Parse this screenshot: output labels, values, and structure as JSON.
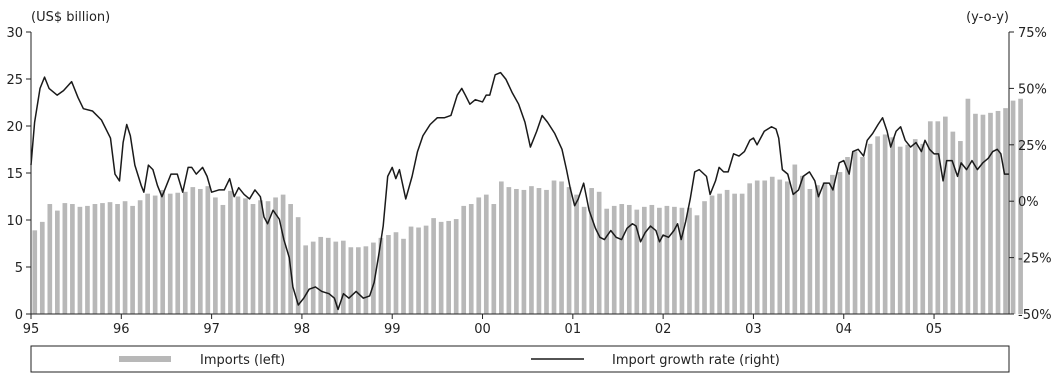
{
  "chart_data": {
    "type": "bar+line",
    "left_axis": {
      "unit_label": "(US$ billion)",
      "range": [
        0,
        30
      ],
      "ticks": [
        "0",
        "5",
        "10",
        "15",
        "20",
        "25",
        "30"
      ]
    },
    "right_axis": {
      "unit_label": "(y-o-y)",
      "range": [
        -50,
        75
      ],
      "ticks": [
        "-50%",
        "-25%",
        "0%",
        "25%",
        "50%",
        "75%"
      ]
    },
    "x_axis": {
      "range": [
        1995.0,
        2005.83
      ],
      "ticks": [
        "95",
        "96",
        "97",
        "98",
        "99",
        "00",
        "01",
        "02",
        "03",
        "04",
        "05"
      ]
    },
    "grid": false,
    "legend_position": "bottom",
    "legend": [
      {
        "label": "Imports (left)",
        "kind": "bar",
        "color": "#b8b8b8"
      },
      {
        "label": "Import growth rate (right)",
        "kind": "line",
        "color": "#1a1a1a"
      }
    ],
    "series": [
      {
        "name": "Imports (left)",
        "type": "bar",
        "axis": "left",
        "color": "#b8b8b8",
        "start_year": 1995,
        "start_month": 1,
        "values": [
          8.9,
          9.8,
          11.7,
          11.0,
          11.8,
          11.7,
          11.4,
          11.5,
          11.7,
          11.8,
          11.9,
          11.7,
          12.0,
          11.5,
          12.1,
          12.8,
          12.6,
          13.2,
          12.8,
          12.9,
          13.0,
          13.5,
          13.3,
          13.6,
          12.4,
          11.6,
          13.1,
          12.5,
          12.3,
          11.7,
          12.1,
          12.0,
          12.4,
          12.7,
          11.7,
          10.3,
          7.3,
          7.7,
          8.2,
          8.1,
          7.7,
          7.8,
          7.1,
          7.1,
          7.2,
          7.6,
          8.1,
          8.4,
          8.7,
          8.0,
          9.3,
          9.2,
          9.4,
          10.2,
          9.8,
          9.9,
          10.1,
          11.5,
          11.7,
          12.4,
          12.7,
          11.7,
          14.1,
          13.5,
          13.3,
          13.2,
          13.6,
          13.4,
          13.2,
          14.2,
          14.1,
          13.5,
          12.7,
          11.4,
          13.4,
          13.0,
          11.2,
          11.5,
          11.7,
          11.6,
          11.1,
          11.4,
          11.6,
          11.3,
          11.5,
          11.4,
          11.3,
          11.3,
          10.5,
          12.0,
          12.6,
          12.8,
          13.2,
          12.8,
          12.8,
          13.9,
          14.2,
          14.2,
          14.6,
          14.3,
          14.1,
          15.9,
          14.7,
          13.3,
          13.7,
          14.0,
          14.8,
          15.1,
          16.7,
          17.3,
          16.7,
          18.1,
          18.9,
          19.1,
          18.8,
          17.8,
          18.0,
          18.6,
          18.1,
          20.5,
          20.5,
          21.0,
          19.4,
          18.4,
          22.9,
          21.3,
          21.2,
          21.4,
          21.6,
          21.9,
          22.7,
          22.9
        ]
      },
      {
        "name": "Import growth rate (right)",
        "type": "line",
        "axis": "right",
        "color": "#1a1a1a",
        "points": [
          [
            1995.0,
            16
          ],
          [
            1995.04,
            35
          ],
          [
            1995.1,
            50
          ],
          [
            1995.15,
            55
          ],
          [
            1995.2,
            50
          ],
          [
            1995.29,
            47
          ],
          [
            1995.36,
            49
          ],
          [
            1995.45,
            53
          ],
          [
            1995.52,
            46
          ],
          [
            1995.58,
            41
          ],
          [
            1995.68,
            40
          ],
          [
            1995.78,
            36
          ],
          [
            1995.88,
            28
          ],
          [
            1995.93,
            12
          ],
          [
            1995.98,
            9
          ],
          [
            1996.02,
            26
          ],
          [
            1996.06,
            34
          ],
          [
            1996.1,
            29
          ],
          [
            1996.15,
            16
          ],
          [
            1996.22,
            7
          ],
          [
            1996.25,
            4
          ],
          [
            1996.3,
            16
          ],
          [
            1996.35,
            14
          ],
          [
            1996.4,
            7
          ],
          [
            1996.45,
            2
          ],
          [
            1996.5,
            7
          ],
          [
            1996.55,
            12
          ],
          [
            1996.62,
            12
          ],
          [
            1996.68,
            4
          ],
          [
            1996.74,
            15
          ],
          [
            1996.78,
            15
          ],
          [
            1996.83,
            12
          ],
          [
            1996.9,
            15
          ],
          [
            1996.95,
            11
          ],
          [
            1997.0,
            4
          ],
          [
            1997.08,
            5
          ],
          [
            1997.14,
            5
          ],
          [
            1997.2,
            10
          ],
          [
            1997.25,
            2
          ],
          [
            1997.3,
            6
          ],
          [
            1997.36,
            3
          ],
          [
            1997.42,
            1
          ],
          [
            1997.48,
            5
          ],
          [
            1997.54,
            2
          ],
          [
            1997.58,
            -7
          ],
          [
            1997.62,
            -10
          ],
          [
            1997.68,
            -4
          ],
          [
            1997.75,
            -8
          ],
          [
            1997.8,
            -17
          ],
          [
            1997.86,
            -25
          ],
          [
            1997.9,
            -38
          ],
          [
            1997.96,
            -46
          ],
          [
            1998.02,
            -43
          ],
          [
            1998.08,
            -39
          ],
          [
            1998.15,
            -38
          ],
          [
            1998.22,
            -40
          ],
          [
            1998.3,
            -41
          ],
          [
            1998.36,
            -43
          ],
          [
            1998.4,
            -48
          ],
          [
            1998.46,
            -41
          ],
          [
            1998.52,
            -43
          ],
          [
            1998.6,
            -40
          ],
          [
            1998.68,
            -43
          ],
          [
            1998.75,
            -42
          ],
          [
            1998.8,
            -36
          ],
          [
            1998.85,
            -24
          ],
          [
            1998.9,
            -11
          ],
          [
            1998.95,
            11
          ],
          [
            1999.0,
            15
          ],
          [
            1999.04,
            10
          ],
          [
            1999.08,
            14
          ],
          [
            1999.15,
            1
          ],
          [
            1999.22,
            11
          ],
          [
            1999.28,
            22
          ],
          [
            1999.34,
            29
          ],
          [
            1999.42,
            34
          ],
          [
            1999.5,
            37
          ],
          [
            1999.58,
            37
          ],
          [
            1999.65,
            38
          ],
          [
            1999.72,
            47
          ],
          [
            1999.77,
            50
          ],
          [
            1999.81,
            47
          ],
          [
            1999.86,
            43
          ],
          [
            1999.92,
            45
          ],
          [
            2000.0,
            44
          ],
          [
            2000.04,
            47
          ],
          [
            2000.08,
            47
          ],
          [
            2000.14,
            56
          ],
          [
            2000.2,
            57
          ],
          [
            2000.26,
            54
          ],
          [
            2000.33,
            48
          ],
          [
            2000.4,
            43
          ],
          [
            2000.47,
            35
          ],
          [
            2000.53,
            24
          ],
          [
            2000.6,
            31
          ],
          [
            2000.66,
            38
          ],
          [
            2000.72,
            35
          ],
          [
            2000.8,
            30
          ],
          [
            2000.88,
            23
          ],
          [
            2000.93,
            14
          ],
          [
            2000.97,
            6
          ],
          [
            2001.02,
            -2
          ],
          [
            2001.06,
            1
          ],
          [
            2001.12,
            8
          ],
          [
            2001.18,
            -4
          ],
          [
            2001.25,
            -12
          ],
          [
            2001.3,
            -16
          ],
          [
            2001.35,
            -17
          ],
          [
            2001.42,
            -13
          ],
          [
            2001.48,
            -16
          ],
          [
            2001.54,
            -17
          ],
          [
            2001.6,
            -12
          ],
          [
            2001.66,
            -10
          ],
          [
            2001.7,
            -11
          ],
          [
            2001.75,
            -18
          ],
          [
            2001.8,
            -14
          ],
          [
            2001.86,
            -11
          ],
          [
            2001.92,
            -13
          ],
          [
            2001.96,
            -18
          ],
          [
            2002.0,
            -15
          ],
          [
            2002.06,
            -16
          ],
          [
            2002.12,
            -13
          ],
          [
            2002.16,
            -10
          ],
          [
            2002.2,
            -17
          ],
          [
            2002.25,
            -9
          ],
          [
            2002.3,
            1
          ],
          [
            2002.35,
            13
          ],
          [
            2002.4,
            14
          ],
          [
            2002.48,
            11
          ],
          [
            2002.52,
            3
          ],
          [
            2002.58,
            9
          ],
          [
            2002.62,
            15
          ],
          [
            2002.67,
            13
          ],
          [
            2002.72,
            13
          ],
          [
            2002.78,
            21
          ],
          [
            2002.84,
            20
          ],
          [
            2002.9,
            22
          ],
          [
            2002.96,
            27
          ],
          [
            2003.0,
            28
          ],
          [
            2003.04,
            25
          ],
          [
            2003.12,
            31
          ],
          [
            2003.2,
            33
          ],
          [
            2003.25,
            32
          ],
          [
            2003.28,
            28
          ],
          [
            2003.32,
            14
          ],
          [
            2003.38,
            12
          ],
          [
            2003.44,
            3
          ],
          [
            2003.5,
            5
          ],
          [
            2003.55,
            11
          ],
          [
            2003.62,
            13
          ],
          [
            2003.68,
            9
          ],
          [
            2003.72,
            2
          ],
          [
            2003.78,
            8
          ],
          [
            2003.84,
            8
          ],
          [
            2003.88,
            5
          ],
          [
            2003.95,
            17
          ],
          [
            2004.0,
            18
          ],
          [
            2004.06,
            12
          ],
          [
            2004.1,
            22
          ],
          [
            2004.16,
            23
          ],
          [
            2004.22,
            20
          ],
          [
            2004.26,
            27
          ],
          [
            2004.32,
            30
          ],
          [
            2004.38,
            34
          ],
          [
            2004.43,
            37
          ],
          [
            2004.48,
            31
          ],
          [
            2004.52,
            24
          ],
          [
            2004.58,
            31
          ],
          [
            2004.63,
            33
          ],
          [
            2004.68,
            27
          ],
          [
            2004.74,
            24
          ],
          [
            2004.8,
            26
          ],
          [
            2004.86,
            22
          ],
          [
            2004.9,
            27
          ],
          [
            2004.95,
            23
          ],
          [
            2005.0,
            21
          ],
          [
            2005.05,
            21
          ],
          [
            2005.1,
            9
          ],
          [
            2005.14,
            18
          ],
          [
            2005.2,
            18
          ],
          [
            2005.26,
            11
          ],
          [
            2005.3,
            17
          ],
          [
            2005.36,
            14
          ],
          [
            2005.42,
            18
          ],
          [
            2005.48,
            14
          ],
          [
            2005.54,
            17
          ],
          [
            2005.6,
            19
          ],
          [
            2005.65,
            22
          ],
          [
            2005.7,
            23
          ],
          [
            2005.74,
            21
          ],
          [
            2005.78,
            12
          ],
          [
            2005.83,
            12
          ]
        ]
      }
    ]
  }
}
